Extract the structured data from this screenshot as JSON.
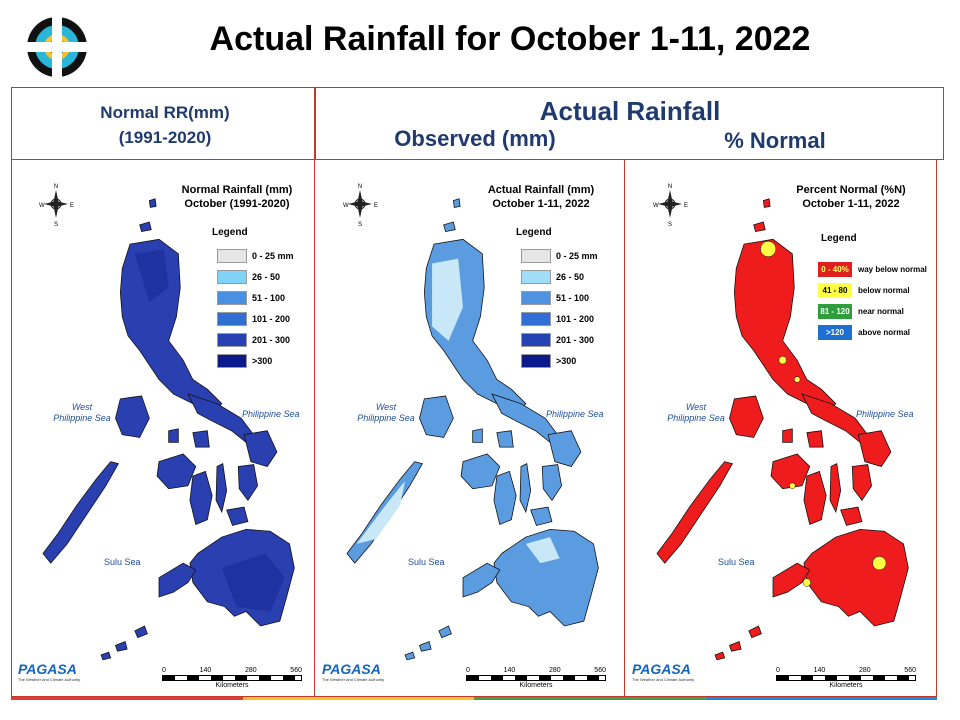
{
  "title": "Actual Rainfall for October 1-11, 2022",
  "headers": {
    "normal_line1": "Normal RR(mm)",
    "normal_line2": "(1991-2020)",
    "actual": "Actual Rainfall",
    "observed": "Observed (mm)",
    "percent": "% Normal"
  },
  "panels": [
    {
      "title_line1": "Normal Rainfall (mm)",
      "title_line2": "October (1991-2020)",
      "legend_title": "Legend",
      "legend": [
        {
          "label": "0 - 25 mm",
          "color": "#e6e6e6"
        },
        {
          "label": "26 - 50",
          "color": "#7fd3f7"
        },
        {
          "label": "51 - 100",
          "color": "#4a90e2"
        },
        {
          "label": "101 - 200",
          "color": "#2f6fd1"
        },
        {
          "label": "201 - 300",
          "color": "#2741b5"
        },
        {
          "label": ">300",
          "color": "#0d1a8c"
        }
      ],
      "land_color": "#2a3fb0",
      "west_sea_1": "West",
      "west_sea_2": "Philippine Sea",
      "east_sea": "Philippine Sea",
      "sulu_sea": "Sulu Sea",
      "scale_ticks": [
        "0",
        "140",
        "280",
        "560"
      ],
      "scale_unit": "Kilometers",
      "brand": "PAGASA",
      "brand_sub": "The Weather and Climate Authority"
    },
    {
      "title_line1": "Actual Rainfall (mm)",
      "title_line2": "October 1-11, 2022",
      "legend_title": "Legend",
      "legend": [
        {
          "label": "0 - 25 mm",
          "color": "#e6e6e6"
        },
        {
          "label": "26 - 50",
          "color": "#9fddf8"
        },
        {
          "label": "51 - 100",
          "color": "#4f93e0"
        },
        {
          "label": "101 - 200",
          "color": "#3070d6"
        },
        {
          "label": "201 - 300",
          "color": "#2543b3"
        },
        {
          "label": ">300",
          "color": "#0d1a8c"
        }
      ],
      "land_color": "#5b9be0",
      "west_sea_1": "West",
      "west_sea_2": "Philippine Sea",
      "east_sea": "Philippine Sea",
      "sulu_sea": "Sulu Sea",
      "scale_ticks": [
        "0",
        "140",
        "280",
        "560"
      ],
      "scale_unit": "Kilometers",
      "brand": "PAGASA",
      "brand_sub": "The Weather and Climate Authority"
    },
    {
      "title_line1": "Percent Normal (%N)",
      "title_line2": "October 1-11, 2022",
      "legend_title": "Legend",
      "legend": [
        {
          "range": "0 - 40%",
          "label": "way below normal",
          "color": "#e02020",
          "text_color": "#ffff66"
        },
        {
          "range": "41 - 80",
          "label": "below normal",
          "color": "#ffff44",
          "text_color": "#000000"
        },
        {
          "range": "81 - 120",
          "label": "near normal",
          "color": "#2e9e3c",
          "text_color": "#ffffff"
        },
        {
          "range": ">120",
          "label": "above normal",
          "color": "#1f6fd1",
          "text_color": "#ffffff"
        }
      ],
      "land_color": "#ee1c1c",
      "west_sea_1": "West",
      "west_sea_2": "Philippine Sea",
      "east_sea": "Philippine Sea",
      "sulu_sea": "Sulu Sea",
      "scale_ticks": [
        "0",
        "140",
        "280",
        "560"
      ],
      "scale_unit": "Kilometers",
      "brand": "PAGASA",
      "brand_sub": "The Weather and Climate Authority"
    }
  ],
  "footer_band_colors": [
    "#e53935",
    "#fbc02d",
    "#43a047",
    "#1e88e5"
  ]
}
